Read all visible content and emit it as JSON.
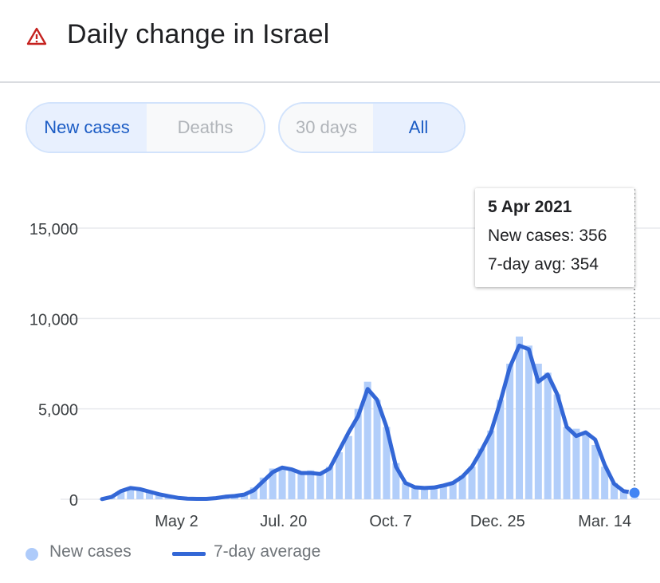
{
  "header": {
    "title": "Daily change in Israel",
    "icon": "warning-triangle-icon",
    "icon_color": "#c5221f"
  },
  "controls": {
    "metric_tabs": [
      {
        "label": "New cases",
        "active": true
      },
      {
        "label": "Deaths",
        "active": false
      }
    ],
    "range_tabs": [
      {
        "label": "30 days",
        "active": false
      },
      {
        "label": "All",
        "active": true
      }
    ]
  },
  "tooltip": {
    "date": "5 Apr 2021",
    "new_cases_line": "New cases: 356",
    "avg_line": "7-day avg: 354"
  },
  "legend": {
    "bars_label": "New cases",
    "line_label": "7-day average"
  },
  "colors": {
    "bar": "#aecbfa",
    "line": "#3367d6",
    "accent": "#1a5bc4",
    "grid": "#e8eaed",
    "axis_text": "#3c4043"
  },
  "chart_data": {
    "type": "bar",
    "title": "Daily change in Israel",
    "ylim": [
      0,
      15000
    ],
    "yticks": [
      0,
      5000,
      10000,
      15000
    ],
    "ytick_labels": [
      "0",
      "5,000",
      "10,000",
      "15,000"
    ],
    "xlim": [
      "2020-03-08",
      "2021-04-05"
    ],
    "xtick_labels": [
      "May 2",
      "Jul. 20",
      "Oct. 7",
      "Dec. 25",
      "Mar. 14"
    ],
    "xtick_dates": [
      "2020-05-02",
      "2020-07-20",
      "2020-10-07",
      "2020-12-25",
      "2021-03-14"
    ],
    "grid": true,
    "legend_position": "bottom-left",
    "series": [
      {
        "name": "New cases",
        "kind": "bar",
        "points": [
          [
            "2020-03-08",
            10
          ],
          [
            "2020-03-15",
            150
          ],
          [
            "2020-03-22",
            480
          ],
          [
            "2020-03-29",
            600
          ],
          [
            "2020-04-05",
            560
          ],
          [
            "2020-04-12",
            400
          ],
          [
            "2020-04-19",
            230
          ],
          [
            "2020-04-26",
            150
          ],
          [
            "2020-05-03",
            80
          ],
          [
            "2020-05-10",
            30
          ],
          [
            "2020-05-17",
            20
          ],
          [
            "2020-05-24",
            20
          ],
          [
            "2020-05-31",
            80
          ],
          [
            "2020-06-07",
            150
          ],
          [
            "2020-06-14",
            180
          ],
          [
            "2020-06-21",
            300
          ],
          [
            "2020-06-28",
            650
          ],
          [
            "2020-07-05",
            1200
          ],
          [
            "2020-07-12",
            1700
          ],
          [
            "2020-07-19",
            1800
          ],
          [
            "2020-07-26",
            1600
          ],
          [
            "2020-08-02",
            1500
          ],
          [
            "2020-08-09",
            1600
          ],
          [
            "2020-08-16",
            1500
          ],
          [
            "2020-08-23",
            1800
          ],
          [
            "2020-08-30",
            2600
          ],
          [
            "2020-09-06",
            3500
          ],
          [
            "2020-09-13",
            5000
          ],
          [
            "2020-09-20",
            6500
          ],
          [
            "2020-09-27",
            5500
          ],
          [
            "2020-10-04",
            4000
          ],
          [
            "2020-10-11",
            2000
          ],
          [
            "2020-10-18",
            900
          ],
          [
            "2020-10-25",
            650
          ],
          [
            "2020-11-01",
            600
          ],
          [
            "2020-11-08",
            650
          ],
          [
            "2020-11-15",
            750
          ],
          [
            "2020-11-22",
            900
          ],
          [
            "2020-11-29",
            1300
          ],
          [
            "2020-12-06",
            1800
          ],
          [
            "2020-12-13",
            2800
          ],
          [
            "2020-12-20",
            3800
          ],
          [
            "2020-12-27",
            5500
          ],
          [
            "2021-01-03",
            7500
          ],
          [
            "2021-01-10",
            9000
          ],
          [
            "2021-01-17",
            8500
          ],
          [
            "2021-01-24",
            7500
          ],
          [
            "2021-01-31",
            7000
          ],
          [
            "2021-02-07",
            5800
          ],
          [
            "2021-02-14",
            4000
          ],
          [
            "2021-02-21",
            3900
          ],
          [
            "2021-02-28",
            3600
          ],
          [
            "2021-03-07",
            3000
          ],
          [
            "2021-03-14",
            1800
          ],
          [
            "2021-03-21",
            900
          ],
          [
            "2021-03-28",
            500
          ],
          [
            "2021-04-05",
            356
          ]
        ]
      },
      {
        "name": "7-day average",
        "kind": "line",
        "points": [
          [
            "2020-03-08",
            10
          ],
          [
            "2020-03-15",
            130
          ],
          [
            "2020-03-22",
            450
          ],
          [
            "2020-03-29",
            620
          ],
          [
            "2020-04-05",
            560
          ],
          [
            "2020-04-12",
            420
          ],
          [
            "2020-04-19",
            280
          ],
          [
            "2020-04-26",
            170
          ],
          [
            "2020-05-03",
            80
          ],
          [
            "2020-05-10",
            30
          ],
          [
            "2020-05-17",
            20
          ],
          [
            "2020-05-24",
            20
          ],
          [
            "2020-05-31",
            60
          ],
          [
            "2020-06-07",
            140
          ],
          [
            "2020-06-14",
            180
          ],
          [
            "2020-06-21",
            260
          ],
          [
            "2020-06-28",
            500
          ],
          [
            "2020-07-05",
            1000
          ],
          [
            "2020-07-12",
            1500
          ],
          [
            "2020-07-19",
            1750
          ],
          [
            "2020-07-26",
            1650
          ],
          [
            "2020-08-02",
            1450
          ],
          [
            "2020-08-09",
            1450
          ],
          [
            "2020-08-16",
            1400
          ],
          [
            "2020-08-23",
            1700
          ],
          [
            "2020-08-30",
            2700
          ],
          [
            "2020-09-06",
            3700
          ],
          [
            "2020-09-13",
            4600
          ],
          [
            "2020-09-20",
            6100
          ],
          [
            "2020-09-27",
            5500
          ],
          [
            "2020-10-04",
            4000
          ],
          [
            "2020-10-11",
            1800
          ],
          [
            "2020-10-18",
            900
          ],
          [
            "2020-10-25",
            660
          ],
          [
            "2020-11-01",
            620
          ],
          [
            "2020-11-08",
            650
          ],
          [
            "2020-11-15",
            760
          ],
          [
            "2020-11-22",
            900
          ],
          [
            "2020-11-29",
            1250
          ],
          [
            "2020-12-06",
            1800
          ],
          [
            "2020-12-13",
            2700
          ],
          [
            "2020-12-20",
            3700
          ],
          [
            "2020-12-27",
            5400
          ],
          [
            "2021-01-03",
            7300
          ],
          [
            "2021-01-10",
            8500
          ],
          [
            "2021-01-17",
            8300
          ],
          [
            "2021-01-24",
            6500
          ],
          [
            "2021-01-31",
            6900
          ],
          [
            "2021-02-07",
            5800
          ],
          [
            "2021-02-14",
            4000
          ],
          [
            "2021-02-21",
            3500
          ],
          [
            "2021-02-28",
            3700
          ],
          [
            "2021-03-07",
            3300
          ],
          [
            "2021-03-14",
            1900
          ],
          [
            "2021-03-21",
            850
          ],
          [
            "2021-03-28",
            450
          ],
          [
            "2021-04-05",
            354
          ]
        ]
      }
    ]
  }
}
